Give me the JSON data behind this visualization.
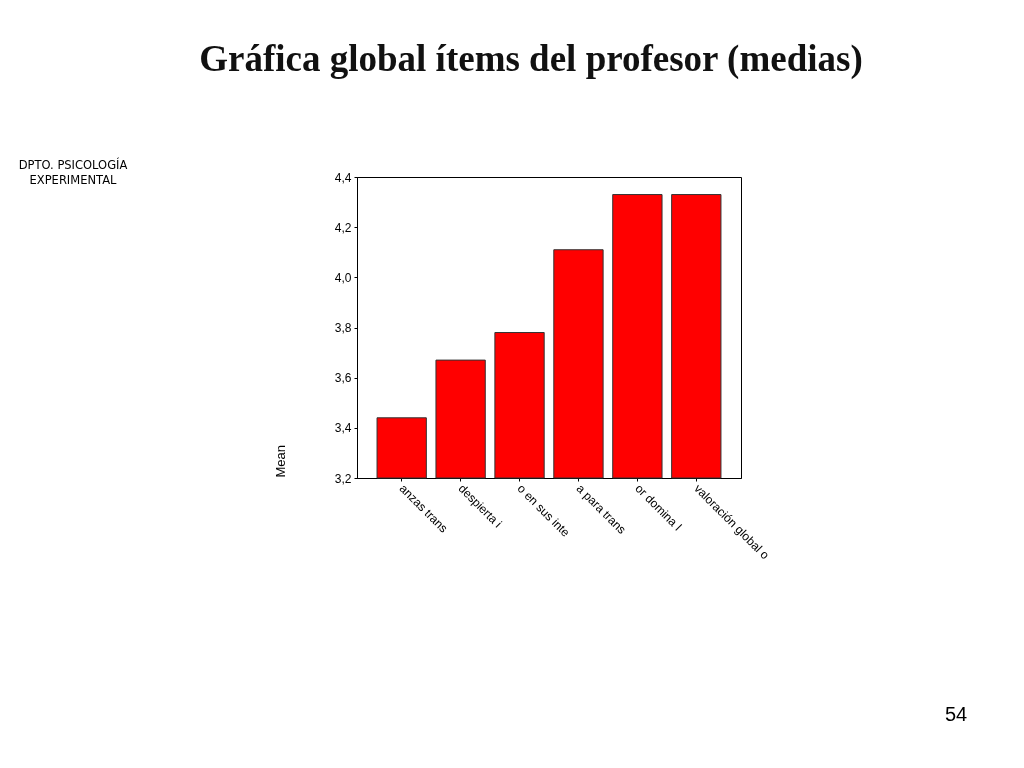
{
  "chart_data": {
    "type": "bar",
    "title": "Gráfica global ítems del profesor (medias)",
    "ylabel": "Mean",
    "categories": [
      "anzas trans",
      "despierta i",
      "o en sus inte",
      "a para trans",
      "or domina l",
      "valoración global o"
    ],
    "values": [
      3.44,
      3.67,
      3.78,
      4.11,
      4.33,
      4.33
    ],
    "color": "#ff0000",
    "ylim": [
      3.2,
      4.4
    ],
    "yticks": [
      {
        "value": 3.2,
        "label": "3,2"
      },
      {
        "value": 3.4,
        "label": "3,4"
      },
      {
        "value": 3.6,
        "label": "3,6"
      },
      {
        "value": 3.8,
        "label": "3,8"
      },
      {
        "value": 4.0,
        "label": "4,0"
      },
      {
        "value": 4.2,
        "label": "4,2"
      },
      {
        "value": 4.4,
        "label": "4,4"
      }
    ],
    "annotations": [
      "DPTO. PSICOLOGÍA EXPERIMENTAL",
      "54"
    ]
  }
}
